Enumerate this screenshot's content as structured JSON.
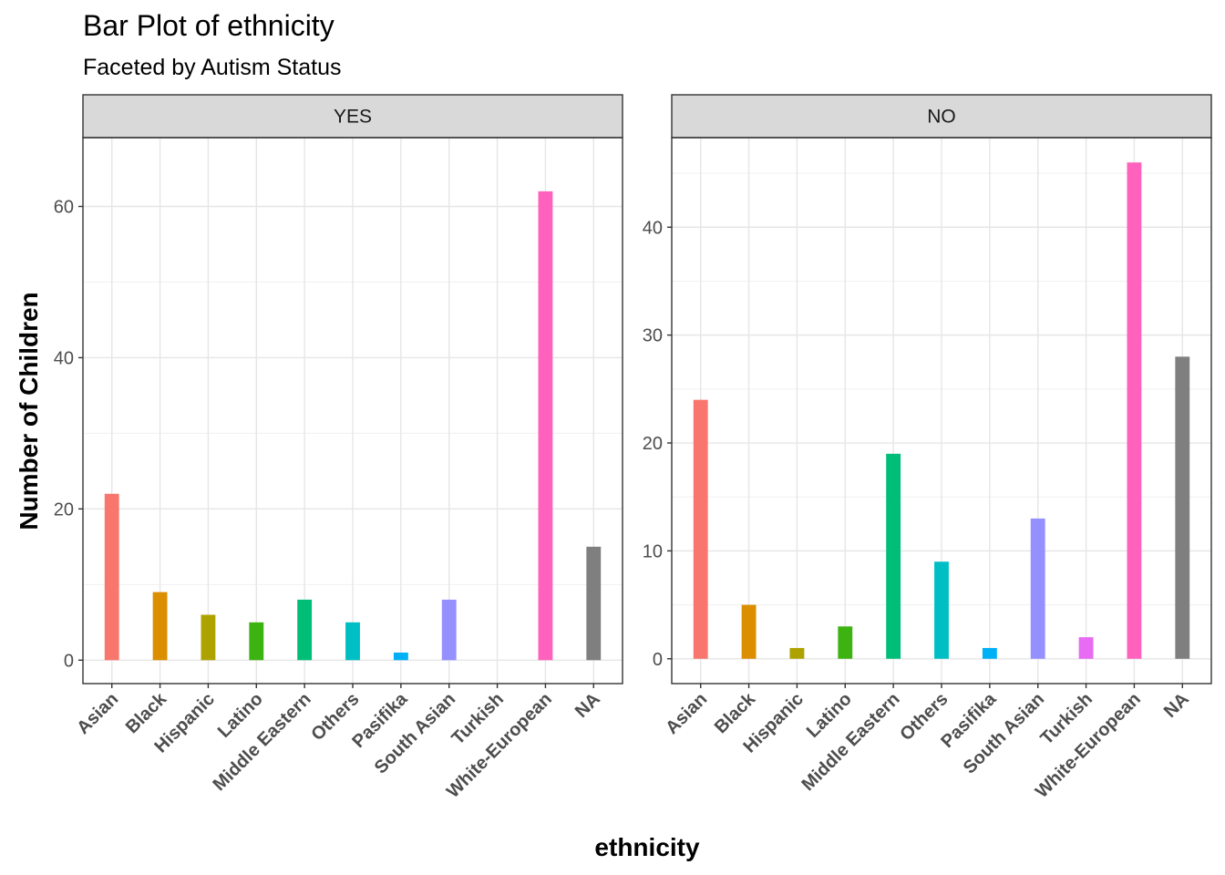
{
  "chart_data": {
    "type": "bar",
    "title": "Bar Plot of ethnicity",
    "subtitle": "Faceted by Autism Status",
    "xlabel": "ethnicity",
    "ylabel": "Number of Children",
    "categories": [
      "Asian",
      "Black",
      "Hispanic",
      "Latino",
      "Middle Eastern",
      "Others",
      "Pasifika",
      "South Asian",
      "Turkish",
      "White-European",
      "NA"
    ],
    "colors": [
      "#F8766D",
      "#DB8E00",
      "#AEA200",
      "#64B200",
      "#00BD5C",
      "#00C1A7",
      "#00BADE",
      "#00A6FF",
      "#B385FF",
      "#EF67EB",
      "#FF63B6",
      "#808080"
    ],
    "category_colors": [
      "#F8766D",
      "#DB8E00",
      "#AEA200",
      "#3DB312",
      "#00BD78",
      "#00BFC4",
      "#00B0F6",
      "#9590FF",
      "#E76BF3",
      "#FF62BC",
      "#7F7F7F"
    ],
    "facets": [
      {
        "label": "YES",
        "values": [
          22,
          9,
          6,
          5,
          8,
          5,
          1,
          8,
          0,
          62,
          15
        ],
        "ylim": [
          -3.1,
          69.1
        ],
        "yticks": [
          0,
          20,
          40,
          60
        ]
      },
      {
        "label": "NO",
        "values": [
          24,
          5,
          1,
          3,
          19,
          9,
          1,
          13,
          2,
          46,
          28
        ],
        "ylim": [
          -2.3,
          48.3
        ],
        "yticks": [
          0,
          10,
          20,
          30,
          40
        ]
      }
    ],
    "grid": true
  }
}
